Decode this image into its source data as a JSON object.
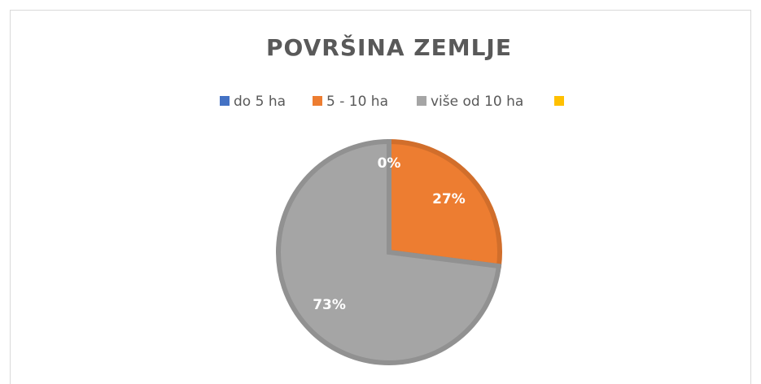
{
  "chart_data": {
    "type": "pie",
    "title": "POVRŠINA ZEMLJE",
    "categories": [
      "do 5 ha",
      "5 - 10 ha",
      "više od 10 ha",
      null
    ],
    "values": [
      0,
      27,
      73,
      null
    ],
    "value_labels": [
      "0%",
      "27%",
      "73%",
      null
    ],
    "colors": [
      "#4472c4",
      "#ed7d31",
      "#a5a5a5",
      "#ffc000"
    ],
    "legend": "top"
  }
}
